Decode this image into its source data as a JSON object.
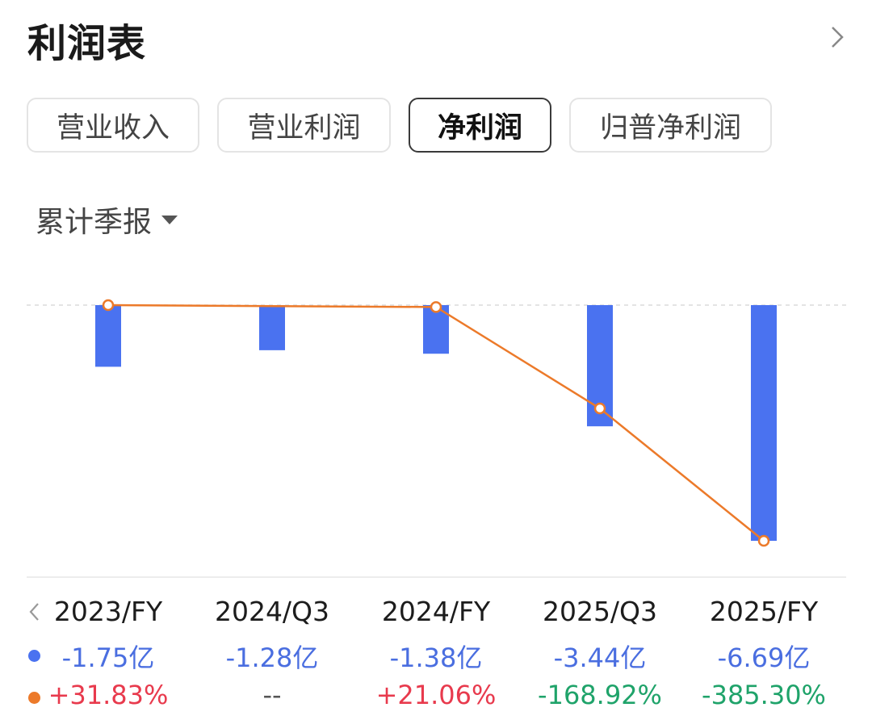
{
  "header": {
    "title": "利润表"
  },
  "tabs": [
    {
      "label": "营业收入",
      "active": false
    },
    {
      "label": "营业利润",
      "active": false
    },
    {
      "label": "净利润",
      "active": true
    },
    {
      "label": "归普净利润",
      "active": false
    }
  ],
  "period_selector": {
    "label": "累计季报"
  },
  "colors": {
    "bar": "#4a72f0",
    "line": "#ec7a2a",
    "value_text": "#4a6ee0",
    "positive": "#e83a4d",
    "negative": "#1fa36a",
    "neutral": "#555555"
  },
  "chart_data": {
    "type": "bar",
    "categories": [
      "2023/FY",
      "2024/Q3",
      "2024/FY",
      "2025/Q3",
      "2025/FY"
    ],
    "series": [
      {
        "values": [
          -1.75,
          -1.28,
          -1.38,
          -3.44,
          -6.69
        ],
        "unit": "亿",
        "chart": "bar"
      },
      {
        "values": [
          31.83,
          null,
          21.06,
          -168.92,
          -385.3
        ],
        "unit": "%",
        "chart": "line"
      }
    ],
    "value_labels": [
      "-1.75亿",
      "-1.28亿",
      "-1.38亿",
      "-3.44亿",
      "-6.69亿"
    ],
    "change_labels": [
      "+31.83%",
      "--",
      "+21.06%",
      "-168.92%",
      "-385.30%"
    ],
    "ylim": [
      -6.69,
      0
    ],
    "grid": false,
    "zero_line": "dashed"
  }
}
